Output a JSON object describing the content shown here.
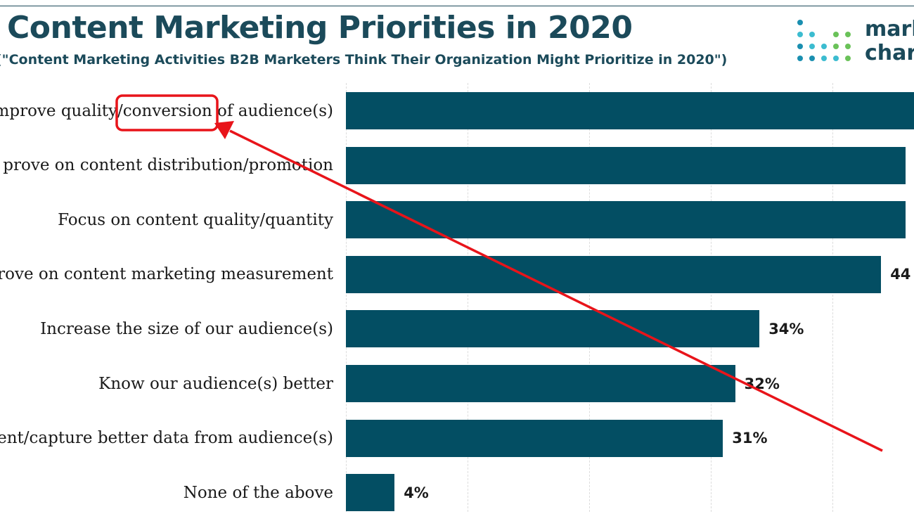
{
  "title": "Content Marketing Priorities in 2020",
  "subtitle": "(\"Content Marketing Activities B2B Marketers Think Their Organization Might Prioritize in 2020\")",
  "logo": {
    "line1": "mark",
    "line2": "char"
  },
  "colors": {
    "bar": "#034e63",
    "title": "#1b4a5a",
    "annotation": "#e8141a",
    "logo_dots": [
      "#1a8fb0",
      "#3cbcd0",
      "#6ac259"
    ]
  },
  "chart_data": {
    "type": "bar",
    "orientation": "horizontal",
    "title": "Content Marketing Priorities in 2020",
    "subtitle": "(\"Content Marketing Activities B2B Marketers Think Their Organization Might Prioritize in 2020\")",
    "xlabel": "",
    "ylabel": "",
    "xlim": [
      0,
      60
    ],
    "grid": true,
    "categories": [
      "Improve quality/conversion of audience(s)",
      "Improve on content distribution/promotion",
      "Focus on content quality/quantity",
      "Improve on content marketing measurement",
      "Increase the size of our audience(s)",
      "Know our audience(s) better",
      "Implement/capture better data from audience(s)",
      "None of the above"
    ],
    "display_labels": [
      "mprove quality/conversion of audience(s)",
      "prove on content distribution/promotion",
      "Focus on content quality/quantity",
      "rove on content marketing measurement",
      "Increase the size of our audience(s)",
      "Know our audience(s) better",
      "ent/capture better data from audience(s)",
      "None of the above"
    ],
    "values": [
      47,
      46,
      46,
      44,
      34,
      32,
      31,
      4
    ],
    "value_labels": [
      "",
      "",
      "",
      "44",
      "34%",
      "32%",
      "31%",
      "4%"
    ]
  },
  "annotations": {
    "highlight_word": "conversion",
    "description": "red box with arrow"
  }
}
